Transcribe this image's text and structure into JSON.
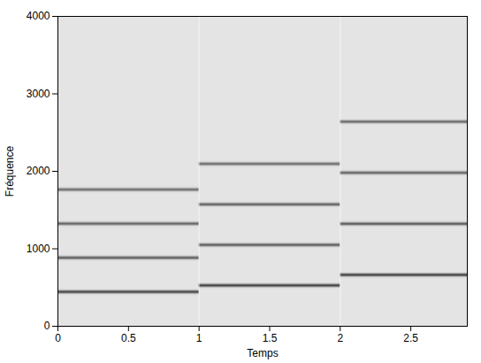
{
  "chart_data": {
    "type": "spectrogram",
    "x_label": "Temps",
    "y_label": "Fréquence",
    "xlim": [
      0,
      2.9
    ],
    "ylim": [
      0,
      4000
    ],
    "xticks": [
      0,
      0.5,
      1,
      1.5,
      2,
      2.5
    ],
    "yticks": [
      0,
      1000,
      2000,
      3000,
      4000
    ],
    "segments": [
      {
        "start": 0,
        "end": 1,
        "frequencies": [
          440,
          880,
          1320,
          1760
        ],
        "intensities": [
          1,
          0.85,
          0.8,
          0.75
        ]
      },
      {
        "start": 1,
        "end": 2,
        "frequencies": [
          523,
          1046,
          1569,
          2092
        ],
        "intensities": [
          1,
          0.85,
          0.8,
          0.75
        ]
      },
      {
        "start": 2,
        "end": 2.9,
        "frequencies": [
          659,
          1318,
          1977,
          2636
        ],
        "intensities": [
          1,
          0.85,
          0.8,
          0.75
        ]
      }
    ]
  }
}
